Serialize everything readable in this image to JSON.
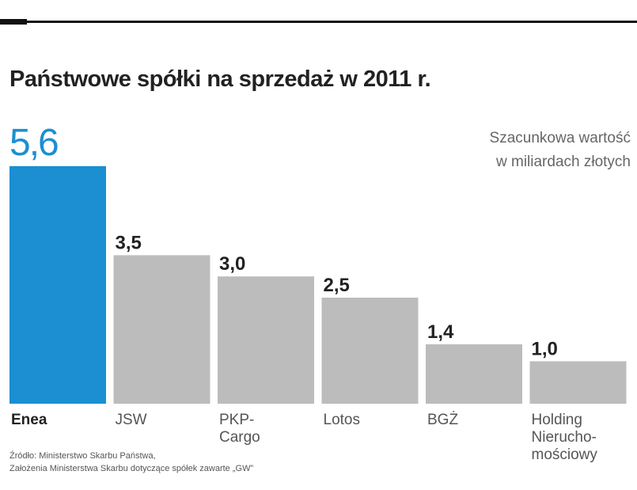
{
  "chart_data": {
    "type": "bar",
    "title": "Państwowe spółki na sprzedaż w 2011 r.",
    "subtitle": "Szacunkowa wartość\nw miliardach złotych",
    "categories": [
      "Enea",
      "JSW",
      "PKP-\nCargo",
      "Lotos",
      "BGŻ",
      "Holding\nNierucho-\nmościowy"
    ],
    "values": [
      5.6,
      3.5,
      3.0,
      2.5,
      1.4,
      1.0
    ],
    "value_labels": [
      "5,6",
      "3,5",
      "3,0",
      "2,5",
      "1,4",
      "1,0"
    ],
    "colors": [
      "#1b8fd2",
      "#bcbcbc",
      "#bcbcbc",
      "#bcbcbc",
      "#bcbcbc",
      "#bcbcbc"
    ],
    "source": "Źródło: Ministerstwo Skarbu Państwa,\nZałożenia Ministerstwa Skarbu dotyczące spółek zawarte „GW”"
  }
}
